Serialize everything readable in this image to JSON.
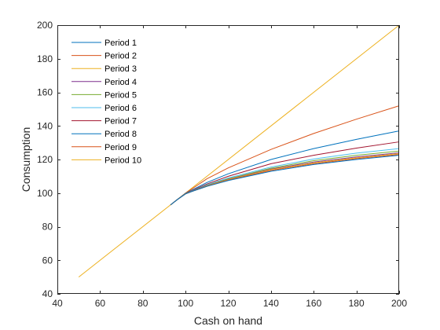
{
  "chart_data": {
    "type": "line",
    "title": "",
    "xlabel": "Cash on hand",
    "ylabel": "Consumption",
    "xlim": [
      40,
      200
    ],
    "ylim": [
      40,
      200
    ],
    "xticks": [
      40,
      60,
      80,
      100,
      120,
      140,
      160,
      180,
      200
    ],
    "yticks": [
      40,
      60,
      80,
      100,
      120,
      140,
      160,
      180,
      200
    ],
    "grid": false,
    "legend": "top-left",
    "series": [
      {
        "name": "Period  1",
        "color": "#0072BD",
        "x": [
          93,
          96,
          100,
          103,
          110,
          120,
          140,
          160,
          180,
          200
        ],
        "y": [
          93,
          96,
          99.5,
          101,
          104,
          107.5,
          113,
          117,
          120,
          122.5
        ]
      },
      {
        "name": "Period  2",
        "color": "#D95319",
        "x": [
          93,
          96,
          100,
          103,
          110,
          120,
          140,
          160,
          180,
          200
        ],
        "y": [
          93,
          96,
          99.5,
          101,
          104,
          107.7,
          113.5,
          117.5,
          120.5,
          123
        ]
      },
      {
        "name": "Period  3",
        "color": "#EDB120",
        "x": [
          93,
          96,
          100,
          103,
          110,
          120,
          140,
          160,
          180,
          200
        ],
        "y": [
          93,
          96,
          99.6,
          101,
          104.2,
          108,
          114,
          118,
          121,
          123.5
        ]
      },
      {
        "name": "Period  4",
        "color": "#7E2F8E",
        "x": [
          93,
          96,
          100,
          103,
          110,
          120,
          140,
          160,
          180,
          200
        ],
        "y": [
          93,
          96,
          99.6,
          101.1,
          104.4,
          108.2,
          114.3,
          118.5,
          121.5,
          124
        ]
      },
      {
        "name": "Period  5",
        "color": "#77AC30",
        "x": [
          93,
          96,
          100,
          103,
          110,
          120,
          140,
          160,
          180,
          200
        ],
        "y": [
          93,
          96,
          99.7,
          101.2,
          104.6,
          108.5,
          114.8,
          119.3,
          122.5,
          125
        ]
      },
      {
        "name": "Period  6",
        "color": "#4DBEEE",
        "x": [
          93,
          96,
          100,
          103,
          110,
          120,
          140,
          160,
          180,
          200
        ],
        "y": [
          93,
          96,
          99.7,
          101.3,
          104.9,
          109,
          115.5,
          120.3,
          123.8,
          126.5
        ]
      },
      {
        "name": "Period  7",
        "color": "#A2142F",
        "x": [
          93,
          96,
          100,
          103,
          110,
          120,
          140,
          160,
          180,
          200
        ],
        "y": [
          93,
          96,
          99.8,
          101.5,
          105.4,
          110,
          117.5,
          122.5,
          126.8,
          130.5
        ]
      },
      {
        "name": "Period  8",
        "color": "#0072BD",
        "x": [
          93,
          96,
          100,
          103,
          110,
          120,
          140,
          160,
          180,
          200
        ],
        "y": [
          93,
          96,
          99.9,
          101.8,
          106.3,
          111.5,
          120,
          126.5,
          132,
          137
        ]
      },
      {
        "name": "Period  9",
        "color": "#D95319",
        "x": [
          93,
          96,
          100,
          103,
          110,
          120,
          140,
          160,
          180,
          200
        ],
        "y": [
          93,
          96,
          100,
          102.5,
          108.5,
          115,
          126,
          135.5,
          144,
          152
        ]
      },
      {
        "name": "Period  10",
        "color": "#EDB120",
        "x": [
          50,
          200
        ],
        "y": [
          50,
          200
        ]
      }
    ]
  }
}
